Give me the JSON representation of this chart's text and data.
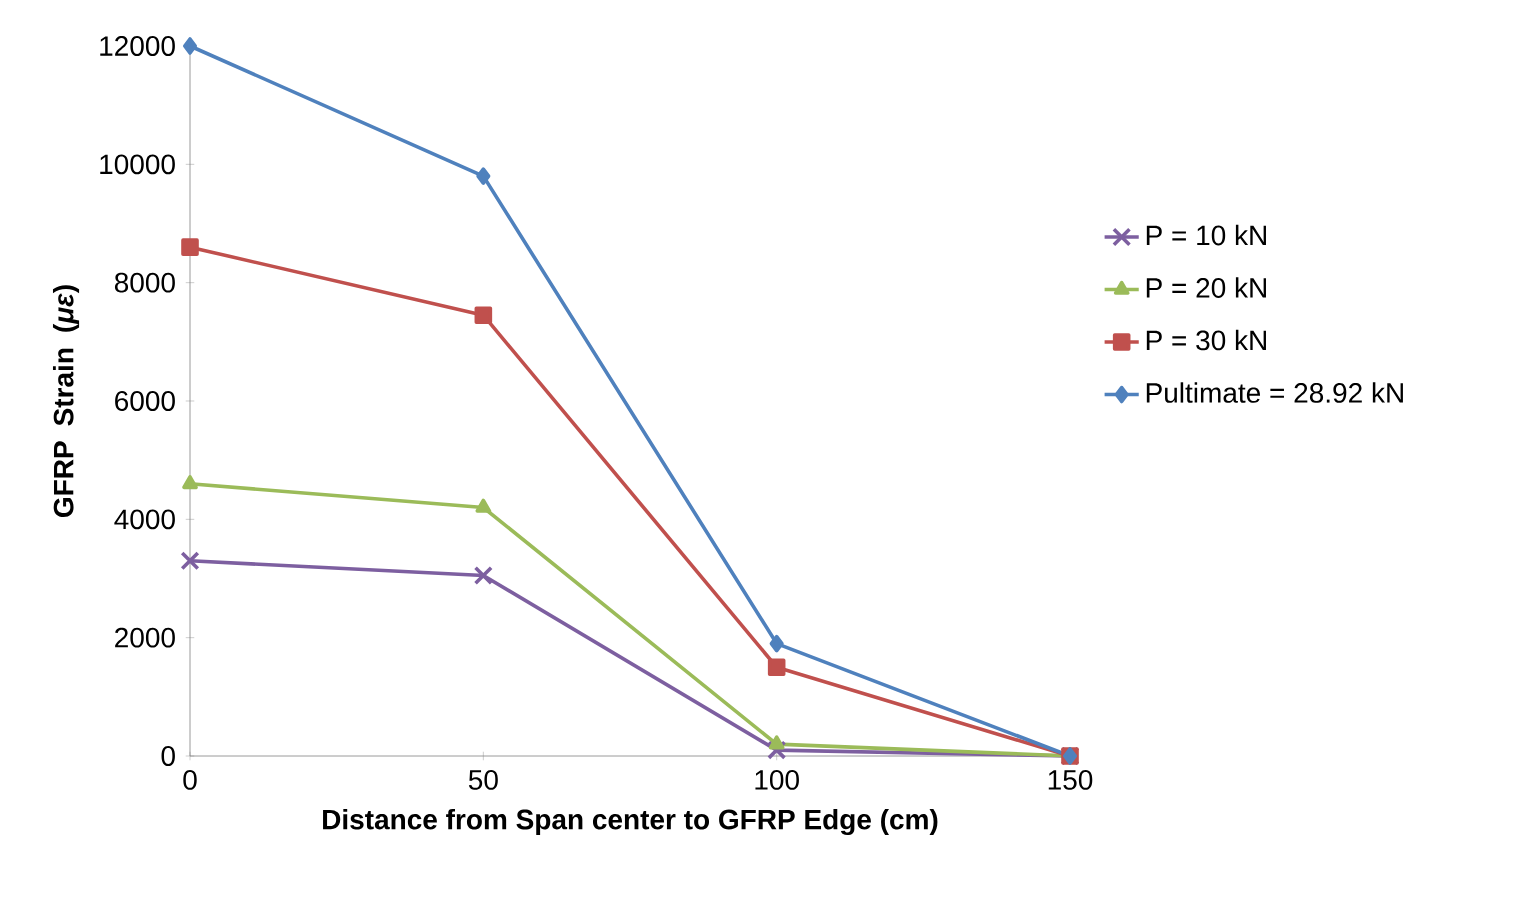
{
  "chart_data": {
    "type": "line",
    "xlabel": "Distance from Span center to GFRP Edge (cm)",
    "ylabel": "GFRP Strain (*με*)",
    "x": [
      0,
      50,
      100,
      150
    ],
    "series": [
      {
        "name": "P = 10 kN",
        "color": "#7d5fa0",
        "marker": "cross",
        "values": [
          3300,
          3050,
          100,
          0
        ]
      },
      {
        "name": "P = 20 kN",
        "color": "#9bbb59",
        "marker": "triangle",
        "values": [
          4600,
          4200,
          200,
          0
        ]
      },
      {
        "name": "P = 30 kN",
        "color": "#c0504d",
        "marker": "square",
        "values": [
          8600,
          7450,
          1500,
          0
        ]
      },
      {
        "name": "Pultimate = 28.92 kN",
        "color": "#4f81bd",
        "marker": "diamond",
        "values": [
          12000,
          9800,
          1900,
          0
        ]
      }
    ],
    "xlim": [
      0,
      150
    ],
    "xticks": [
      0,
      50,
      100,
      150
    ],
    "ylim": [
      0,
      12000
    ],
    "yticks": [
      0,
      2000,
      4000,
      6000,
      8000,
      10000,
      12000
    ],
    "grid": false,
    "legend": "right",
    "line_style": "solid"
  }
}
